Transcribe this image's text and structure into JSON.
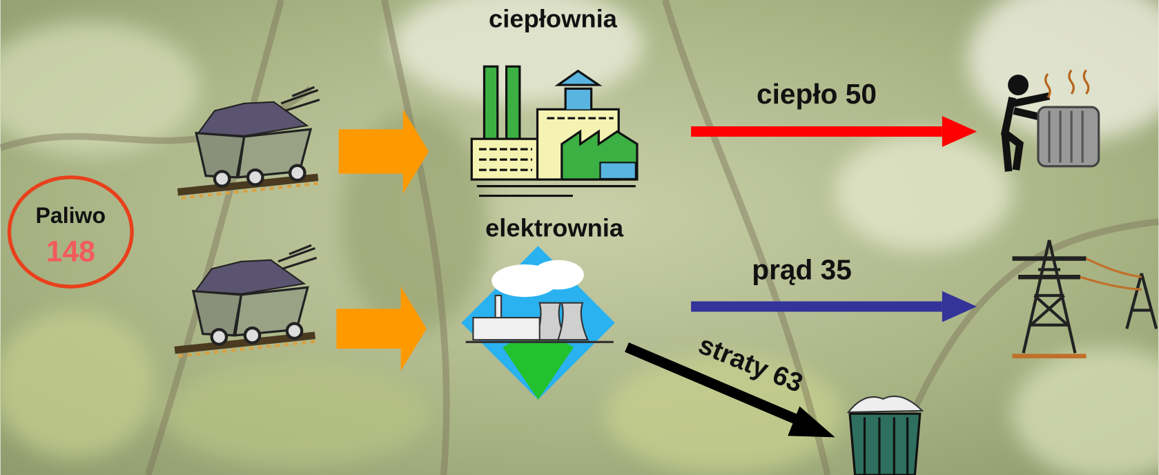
{
  "header": {
    "title": "ciepłownia"
  },
  "nodes": [
    {
      "label": "ciepłownia"
    },
    {
      "label": "elektrownia"
    }
  ],
  "fuel": {
    "label": "Paliwo",
    "value": "148"
  },
  "flows": [
    {
      "label": "ciepło 50"
    },
    {
      "label": "prąd 35"
    },
    {
      "label": "straty 63"
    }
  ]
}
